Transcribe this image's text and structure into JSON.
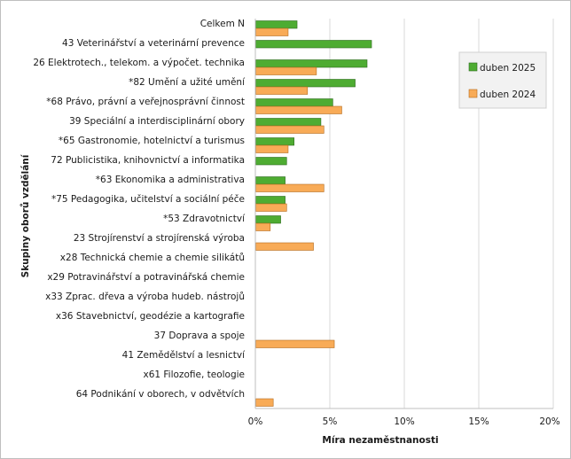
{
  "chart_data": {
    "type": "bar",
    "orientation": "horizontal",
    "title": "",
    "xlabel": "Míra nezaměstnanosti",
    "ylabel": "Skupiny oborů vzdělání",
    "xlim": [
      0,
      20
    ],
    "x_ticks": [
      0,
      5,
      10,
      15,
      20
    ],
    "x_tick_labels": [
      "0%",
      "5%",
      "10%",
      "15%",
      "20%"
    ],
    "grid": true,
    "legend_position": "top-right",
    "categories": [
      "Celkem N",
      "43 Veterinářství a veterinární prevence",
      "26 Elektrotech., telekom. a výpočet. technika",
      "*82 Umění a užité umění",
      "*68 Právo, právní a veřejnosprávní činnost",
      "39 Speciální a interdisciplinární obory",
      "*65 Gastronomie, hotelnictví a turismus",
      "72 Publicistika, knihovnictví a informatika",
      "*63 Ekonomika a administrativa",
      "*75 Pedagogika, učitelství a sociální péče",
      "*53 Zdravotnictví",
      "23 Strojírenství a strojírenská výroba",
      "x28 Technická chemie a chemie silikátů",
      "x29 Potravinářství a potravinářská chemie",
      "x33 Zprac. dřeva a výroba hudeb. nástrojů",
      "x36 Stavebnictví, geodézie a kartografie",
      "37 Doprava a spoje",
      "41 Zemědělství a lesnictví",
      "x61 Filozofie, teologie",
      "64 Podnikání v oborech, v odvětvích"
    ],
    "series": [
      {
        "name": "duben  2025",
        "color": "#4eac32",
        "values": [
          2.8,
          7.8,
          7.5,
          6.7,
          5.2,
          4.4,
          2.6,
          2.1,
          2.0,
          2.0,
          1.7,
          0,
          0,
          0,
          0,
          0,
          0,
          0,
          0,
          0
        ]
      },
      {
        "name": "duben  2024",
        "color": "#f8ab57",
        "values": [
          2.2,
          0,
          4.1,
          3.5,
          5.8,
          4.6,
          2.2,
          0,
          4.6,
          2.1,
          1.0,
          3.9,
          0,
          0,
          0,
          0,
          5.3,
          0,
          0,
          1.2
        ]
      }
    ]
  }
}
